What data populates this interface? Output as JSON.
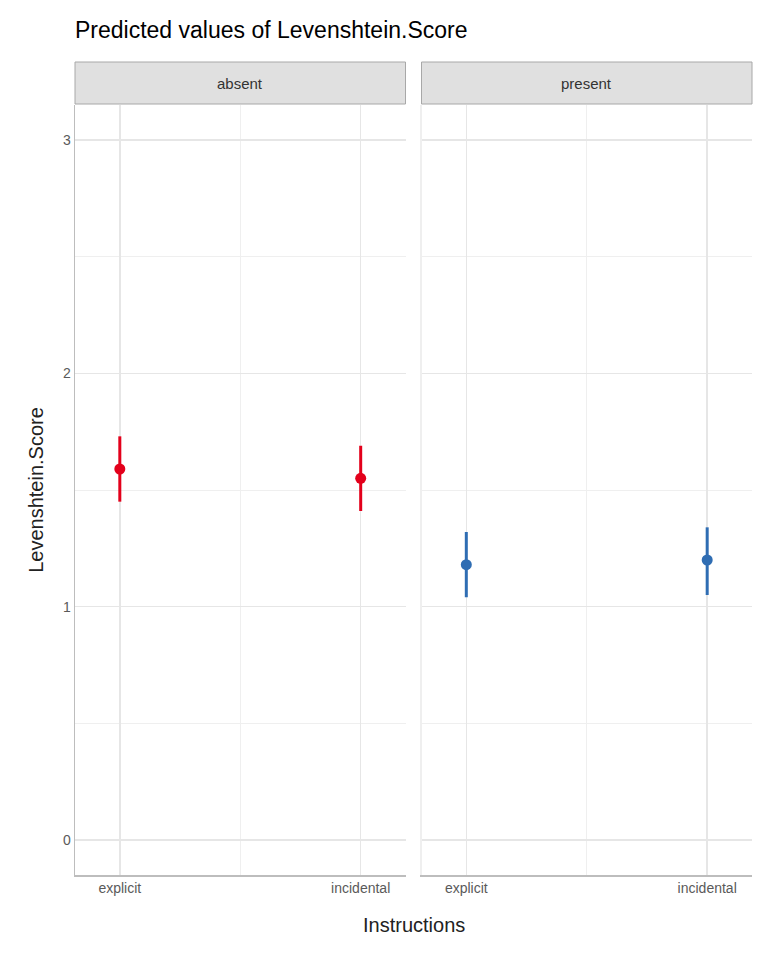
{
  "chart_data": {
    "type": "scatter",
    "title": "Predicted values of Levenshtein.Score",
    "x_label": "Instructions",
    "y_label": "Levenshtein.Score",
    "categories": [
      "explicit",
      "incidental"
    ],
    "series": [
      {
        "name": "absent",
        "color": "#e3001b",
        "values": [
          1.59,
          1.55
        ],
        "ci_low": [
          1.45,
          1.41
        ],
        "ci_high": [
          1.73,
          1.69
        ]
      },
      {
        "name": "present",
        "color": "#2f6db3",
        "values": [
          1.18,
          1.2
        ],
        "ci_low": [
          1.04,
          1.05
        ],
        "ci_high": [
          1.32,
          1.34
        ]
      }
    ],
    "ylim": [
      -0.15,
      3.15
    ],
    "yticks": [
      0,
      1,
      2,
      3
    ],
    "grid": true,
    "marker": "circle"
  }
}
